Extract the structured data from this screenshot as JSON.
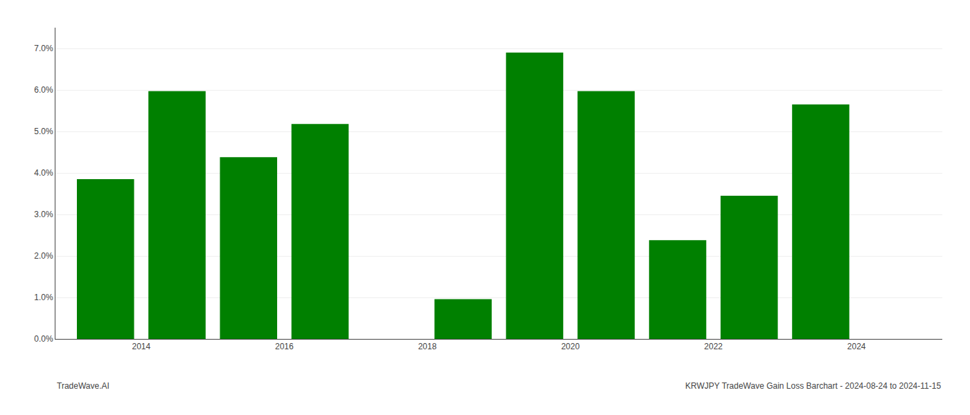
{
  "chart_data": {
    "type": "bar",
    "x": [
      2013,
      2014,
      2015,
      2016,
      2018,
      2019,
      2020,
      2021,
      2022,
      2023
    ],
    "values": [
      0.0385,
      0.0597,
      0.0438,
      0.0518,
      0.0096,
      0.069,
      0.0597,
      0.0238,
      0.0345,
      0.0565
    ],
    "color": "#008000",
    "xlim": [
      2012.3,
      2024.7
    ],
    "xticks": [
      {
        "value": 2013.5,
        "label": "2014"
      },
      {
        "value": 2015.5,
        "label": "2016"
      },
      {
        "value": 2017.5,
        "label": "2018"
      },
      {
        "value": 2019.5,
        "label": "2020"
      },
      {
        "value": 2021.5,
        "label": "2022"
      },
      {
        "value": 2023.5,
        "label": "2024"
      }
    ],
    "ylim": [
      0.0,
      0.075
    ],
    "yticks": [
      {
        "value": 0.0,
        "label": "0.0%"
      },
      {
        "value": 0.01,
        "label": "1.0%"
      },
      {
        "value": 0.02,
        "label": "2.0%"
      },
      {
        "value": 0.03,
        "label": "3.0%"
      },
      {
        "value": 0.04,
        "label": "4.0%"
      },
      {
        "value": 0.05,
        "label": "5.0%"
      },
      {
        "value": 0.06,
        "label": "6.0%"
      },
      {
        "value": 0.07,
        "label": "7.0%"
      }
    ],
    "grid": true,
    "annotations": [
      "TradeWave.AI",
      "KRWJPY TradeWave Gain Loss Barchart - 2024-08-24 to 2024-11-15"
    ]
  }
}
